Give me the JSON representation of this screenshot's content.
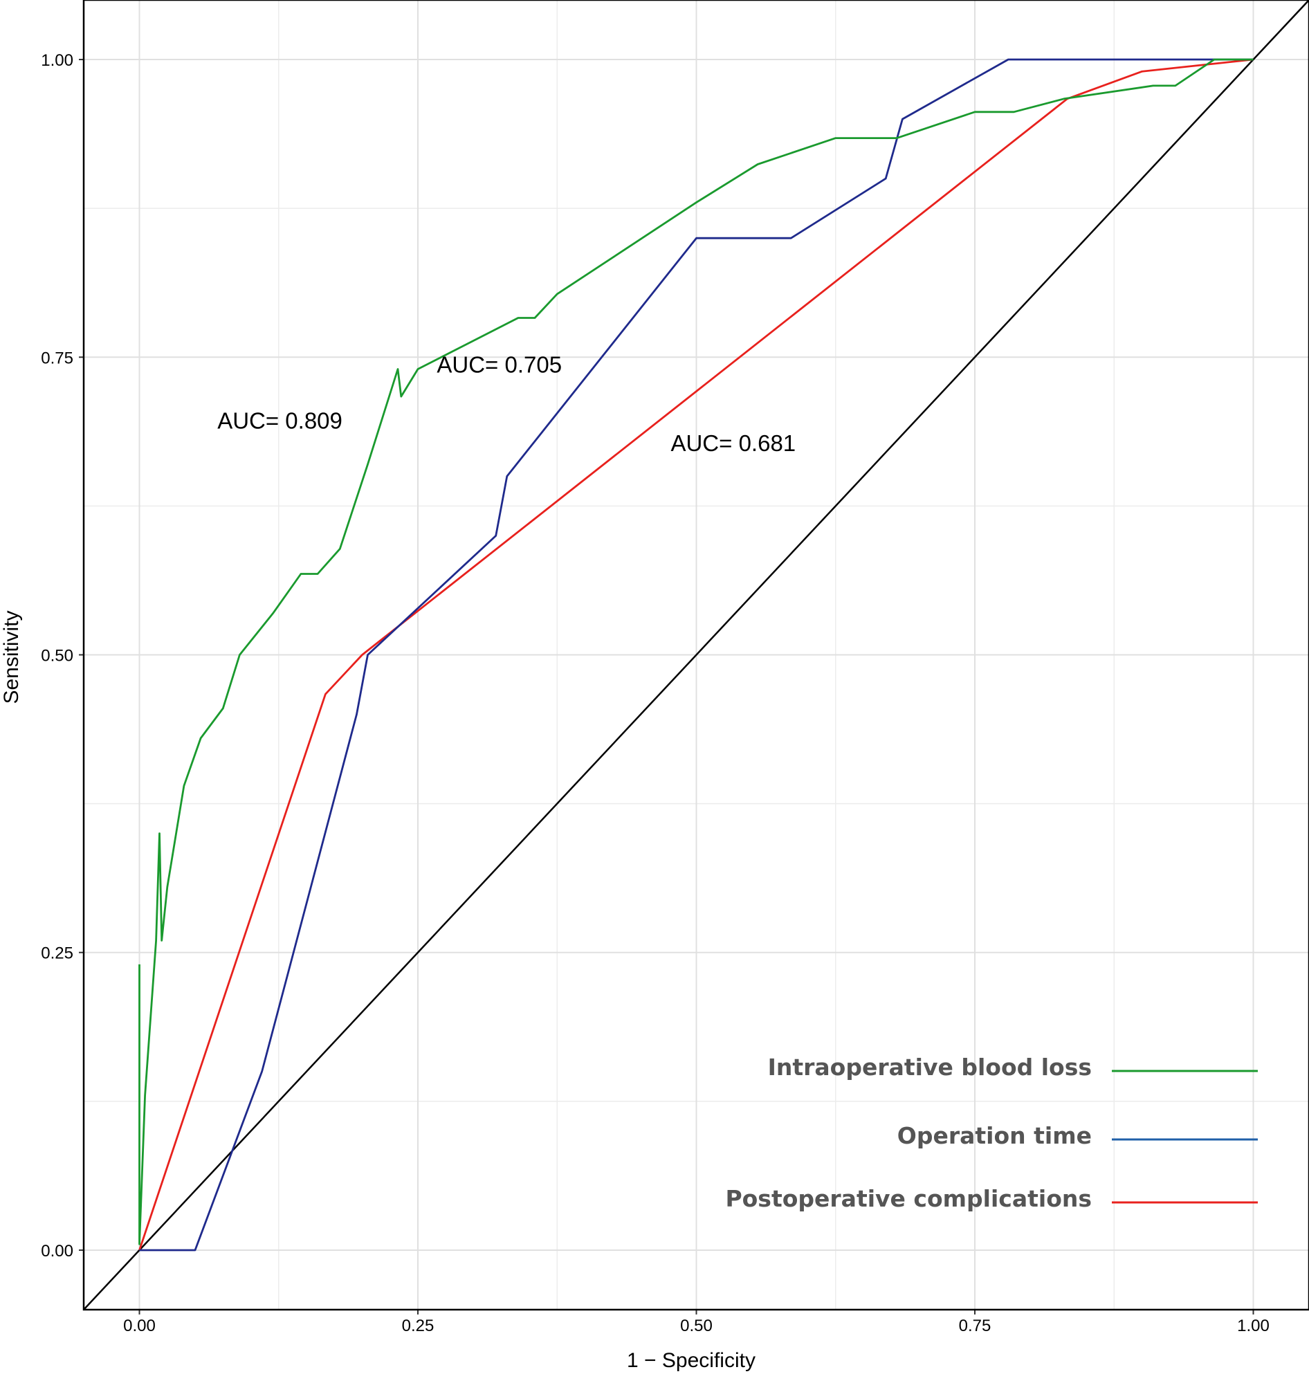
{
  "chart_data": {
    "type": "line",
    "xlabel": "1 − Specificity",
    "ylabel": "Sensitivity",
    "xlim": [
      -0.05,
      1.05
    ],
    "ylim": [
      -0.05,
      1.05
    ],
    "ticks": [
      0,
      0.25,
      0.5,
      0.75,
      1
    ],
    "tick_labels": [
      "0.00",
      "0.25",
      "0.50",
      "0.75",
      "1.00"
    ],
    "grid": true,
    "legend_position": "bottom-right",
    "series": [
      {
        "name": "Intraoperative blood loss",
        "color": "#1a9a2e",
        "x": [
          0,
          0,
          0.005,
          0.015,
          0.018,
          0.02,
          0.025,
          0.04,
          0.055,
          0.075,
          0.09,
          0.12,
          0.145,
          0.16,
          0.18,
          0.205,
          0.232,
          0.235,
          0.25,
          0.34,
          0.355,
          0.375,
          0.5,
          0.555,
          0.625,
          0.68,
          0.75,
          0.785,
          0.83,
          0.91,
          0.93,
          0.965,
          1
        ],
        "y": [
          0.24,
          0.005,
          0.13,
          0.26,
          0.35,
          0.26,
          0.305,
          0.39,
          0.43,
          0.455,
          0.5,
          0.535,
          0.568,
          0.568,
          0.589,
          0.66,
          0.74,
          0.717,
          0.74,
          0.783,
          0.783,
          0.803,
          0.88,
          0.912,
          0.934,
          0.934,
          0.956,
          0.956,
          0.967,
          0.978,
          0.978,
          1,
          1
        ]
      },
      {
        "name": "Operation time",
        "color": "#1f2a8c",
        "x": [
          0,
          0.05,
          0.11,
          0.195,
          0.205,
          0.32,
          0.33,
          0.5,
          0.585,
          0.67,
          0.685,
          0.78,
          1
        ],
        "y": [
          0,
          0,
          0.15,
          0.45,
          0.5,
          0.6,
          0.65,
          0.85,
          0.85,
          0.9,
          0.95,
          1,
          1
        ]
      },
      {
        "name": "Postoperative complications",
        "color": "#e8211d",
        "x": [
          0,
          0.167,
          0.2,
          0.833,
          0.9,
          1
        ],
        "y": [
          0,
          0.467,
          0.5,
          0.967,
          0.99,
          1
        ]
      },
      {
        "name": "Reference",
        "color": "#000000",
        "x": [
          -0.05,
          1.05
        ],
        "y": [
          -0.05,
          1.05
        ]
      }
    ],
    "annotations": [
      {
        "text": "AUC= 0.809",
        "x": 0.07,
        "y": 0.69
      },
      {
        "text": "AUC= 0.705",
        "x": 0.267,
        "y": 0.737
      },
      {
        "text": "AUC= 0.681",
        "x": 0.477,
        "y": 0.671
      }
    ],
    "legend": [
      {
        "label": "Intraoperative blood loss",
        "color": "#1a9a2e"
      },
      {
        "label": "Operation time",
        "color": "#1f5fa8"
      },
      {
        "label": "Postoperative complications",
        "color": "#e8211d"
      }
    ]
  }
}
